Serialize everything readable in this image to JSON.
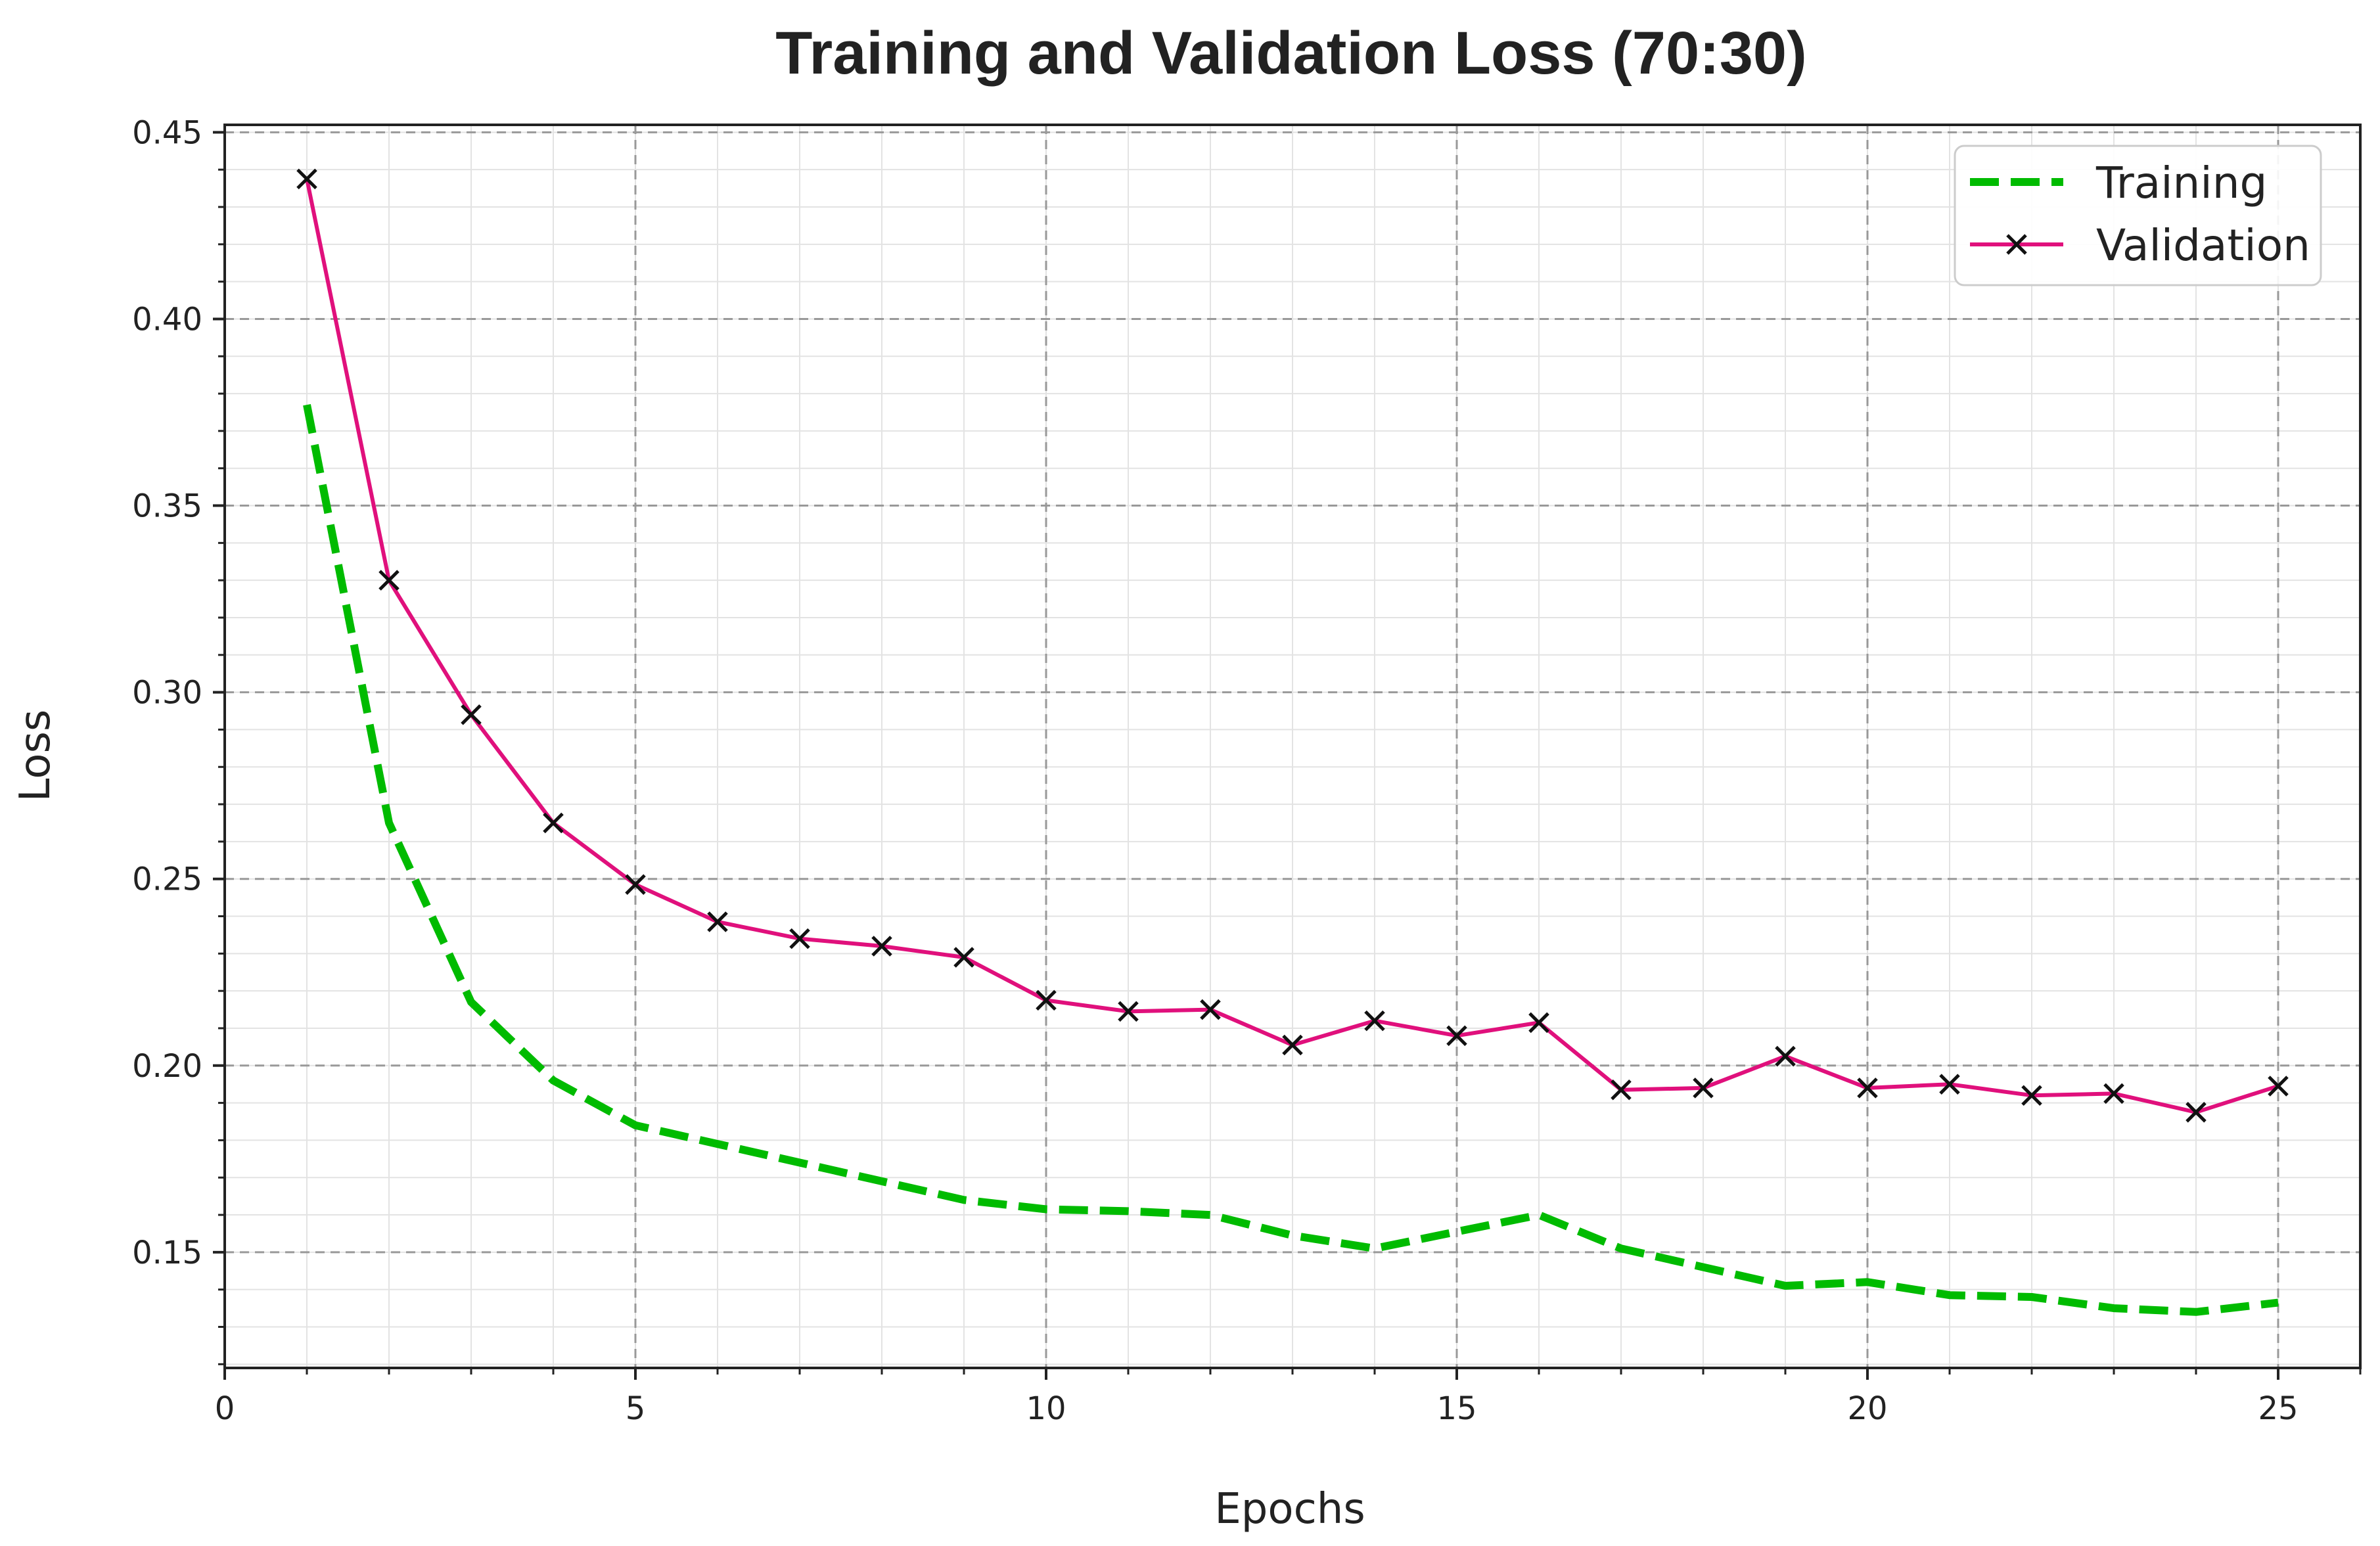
{
  "chart_data": {
    "type": "line",
    "title": "Training and Validation Loss (70:30)",
    "xlabel": "Epochs",
    "ylabel": "Loss",
    "xlim": [
      0,
      26
    ],
    "ylim": [
      0.119,
      0.452
    ],
    "x_ticks": [
      0,
      5,
      10,
      15,
      20,
      25
    ],
    "y_ticks": [
      0.15,
      0.2,
      0.25,
      0.3,
      0.35,
      0.4,
      0.45
    ],
    "x_tick_labels": [
      "0",
      "5",
      "10",
      "15",
      "20",
      "25"
    ],
    "y_tick_labels": [
      "0.15",
      "0.20",
      "0.25",
      "0.30",
      "0.35",
      "0.40",
      "0.45"
    ],
    "grid": true,
    "legend_position": "top-right",
    "x": [
      1,
      2,
      3,
      4,
      5,
      6,
      7,
      8,
      9,
      10,
      11,
      12,
      13,
      14,
      15,
      16,
      17,
      18,
      19,
      20,
      21,
      22,
      23,
      24,
      25
    ],
    "series": [
      {
        "name": "Training",
        "style": "dashed",
        "color": "#00bb00",
        "values": [
          0.377,
          0.265,
          0.217,
          0.196,
          0.184,
          0.179,
          0.174,
          0.169,
          0.164,
          0.1615,
          0.161,
          0.16,
          0.1545,
          0.151,
          0.1555,
          0.16,
          0.151,
          0.146,
          0.141,
          0.142,
          0.1385,
          0.138,
          0.135,
          0.134,
          0.1365
        ]
      },
      {
        "name": "Validation",
        "style": "solid-marker-x",
        "color": "#e0107c",
        "values": [
          0.4375,
          0.33,
          0.294,
          0.265,
          0.2485,
          0.2385,
          0.234,
          0.232,
          0.229,
          0.2175,
          0.2145,
          0.215,
          0.2055,
          0.212,
          0.208,
          0.2115,
          0.1935,
          0.194,
          0.2025,
          0.194,
          0.195,
          0.192,
          0.1925,
          0.1875,
          0.1945
        ]
      }
    ]
  }
}
